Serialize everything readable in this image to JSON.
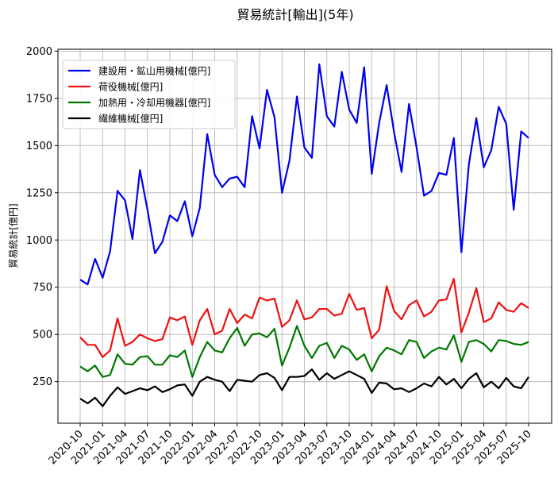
{
  "chart_data": {
    "type": "line",
    "title": "貿易統計[輸出](5年)",
    "xlabel": "",
    "ylabel": "貿易統計[億円]",
    "ylim": [
      30,
      2010
    ],
    "yticks": [
      250,
      500,
      750,
      1000,
      1250,
      1500,
      1750,
      2000
    ],
    "ytick_labels": [
      "250",
      "500",
      "750",
      "1000",
      "1250",
      "1500",
      "1750",
      "2000"
    ],
    "xticks": [
      "2020-10",
      "2021-01",
      "2021-04",
      "2021-07",
      "2021-10",
      "2022-01",
      "2022-04",
      "2022-07",
      "2022-10",
      "2023-01",
      "2023-04",
      "2023-07",
      "2023-10",
      "2024-01",
      "2024-04",
      "2024-07",
      "2024-10",
      "2025-01",
      "2025-04",
      "2025-07",
      "2025-10"
    ],
    "grid": true,
    "legend_position": "top-left",
    "x": [
      "2020-10",
      "2020-11",
      "2020-12",
      "2021-01",
      "2021-02",
      "2021-03",
      "2021-04",
      "2021-05",
      "2021-06",
      "2021-07",
      "2021-08",
      "2021-09",
      "2021-10",
      "2021-11",
      "2021-12",
      "2022-01",
      "2022-02",
      "2022-03",
      "2022-04",
      "2022-05",
      "2022-06",
      "2022-07",
      "2022-08",
      "2022-09",
      "2022-10",
      "2022-11",
      "2022-12",
      "2023-01",
      "2023-02",
      "2023-03",
      "2023-04",
      "2023-05",
      "2023-06",
      "2023-07",
      "2023-08",
      "2023-09",
      "2023-10",
      "2023-11",
      "2023-12",
      "2024-01",
      "2024-02",
      "2024-03",
      "2024-04",
      "2024-05",
      "2024-06",
      "2024-07",
      "2024-08",
      "2024-09",
      "2024-10",
      "2024-11",
      "2024-12",
      "2025-01",
      "2025-02",
      "2025-03",
      "2025-04",
      "2025-05",
      "2025-06",
      "2025-07",
      "2025-08",
      "2025-09",
      "2025-10"
    ],
    "series": [
      {
        "name": "建設用・鉱山用機械[億円]",
        "color": "#0000ee",
        "values": [
          790,
          765,
          900,
          800,
          940,
          1260,
          1210,
          1005,
          1370,
          1160,
          930,
          990,
          1130,
          1100,
          1205,
          1020,
          1170,
          1560,
          1345,
          1280,
          1325,
          1335,
          1280,
          1655,
          1485,
          1795,
          1650,
          1250,
          1420,
          1760,
          1490,
          1435,
          1930,
          1655,
          1600,
          1890,
          1690,
          1620,
          1915,
          1350,
          1620,
          1820,
          1570,
          1360,
          1720,
          1490,
          1235,
          1260,
          1355,
          1345,
          1540,
          935,
          1400,
          1645,
          1385,
          1475,
          1705,
          1615,
          1160,
          1575,
          1540
        ]
      },
      {
        "name": "荷役機械[億円]",
        "color": "#ee1111",
        "values": [
          485,
          445,
          445,
          380,
          415,
          585,
          440,
          460,
          500,
          480,
          465,
          475,
          590,
          575,
          595,
          445,
          575,
          635,
          500,
          520,
          635,
          560,
          605,
          585,
          695,
          680,
          690,
          540,
          575,
          680,
          580,
          590,
          635,
          635,
          600,
          610,
          715,
          630,
          640,
          480,
          525,
          755,
          625,
          580,
          655,
          680,
          595,
          620,
          680,
          685,
          795,
          510,
          615,
          745,
          565,
          585,
          670,
          630,
          620,
          665,
          640
        ]
      },
      {
        "name": "加熱用・冷却用機器[億円]",
        "color": "#007700",
        "values": [
          330,
          305,
          335,
          275,
          285,
          395,
          345,
          340,
          380,
          385,
          340,
          340,
          390,
          380,
          415,
          275,
          380,
          460,
          415,
          405,
          480,
          535,
          440,
          500,
          505,
          485,
          530,
          335,
          430,
          545,
          440,
          375,
          440,
          455,
          375,
          440,
          420,
          365,
          395,
          305,
          385,
          430,
          415,
          395,
          470,
          460,
          375,
          410,
          430,
          420,
          495,
          355,
          460,
          470,
          450,
          410,
          470,
          465,
          450,
          445,
          460
        ]
      },
      {
        "name": "繊維機械[億円]",
        "color": "#000000",
        "values": [
          160,
          135,
          165,
          120,
          175,
          220,
          185,
          200,
          215,
          205,
          225,
          195,
          210,
          230,
          235,
          175,
          250,
          275,
          260,
          250,
          200,
          260,
          255,
          250,
          285,
          295,
          270,
          205,
          275,
          275,
          280,
          315,
          260,
          295,
          265,
          285,
          305,
          285,
          265,
          190,
          245,
          240,
          210,
          215,
          195,
          215,
          240,
          225,
          275,
          235,
          265,
          215,
          265,
          295,
          220,
          250,
          215,
          270,
          225,
          215,
          275
        ]
      }
    ]
  }
}
